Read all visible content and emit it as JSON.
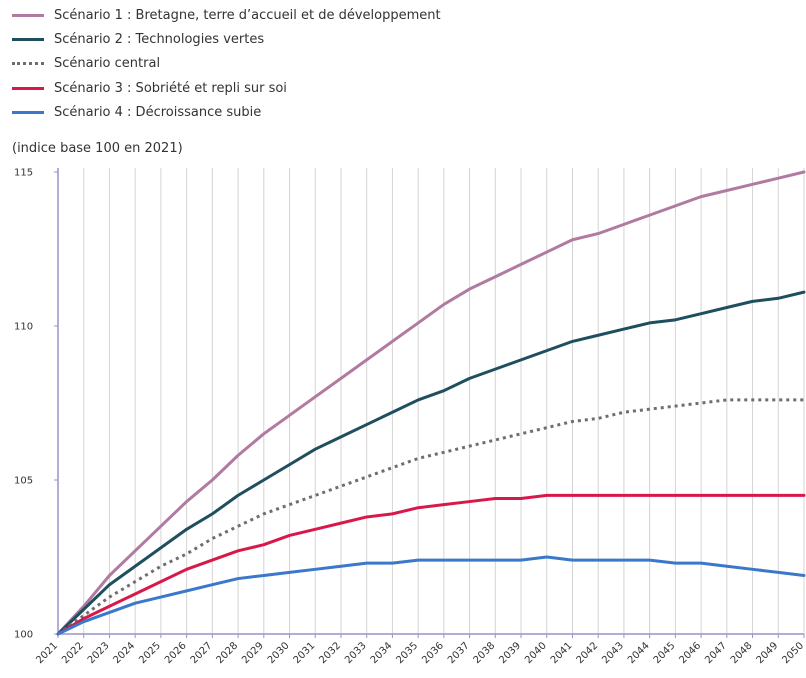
{
  "chart_data": {
    "type": "line",
    "unit_label": "(indice base 100 en 2021)",
    "x": [
      2021,
      2022,
      2023,
      2024,
      2025,
      2026,
      2027,
      2028,
      2029,
      2030,
      2031,
      2032,
      2033,
      2034,
      2035,
      2036,
      2037,
      2038,
      2039,
      2040,
      2041,
      2042,
      2043,
      2044,
      2045,
      2046,
      2047,
      2048,
      2049,
      2050
    ],
    "ylim": [
      100,
      115
    ],
    "yticks": [
      100,
      105,
      110,
      115
    ],
    "grid": "vertical",
    "legend_placement": "top-left",
    "series": [
      {
        "name": "Scénario 1 : Bretagne, terre d’accueil et de développement",
        "color": "#b07aa1",
        "style": "solid",
        "values": [
          100,
          100.9,
          101.9,
          102.7,
          103.5,
          104.3,
          105.0,
          105.8,
          106.5,
          107.1,
          107.7,
          108.3,
          108.9,
          109.5,
          110.1,
          110.7,
          111.2,
          111.6,
          112.0,
          112.4,
          112.8,
          113.0,
          113.3,
          113.6,
          113.9,
          114.2,
          114.4,
          114.6,
          114.8,
          115.0
        ]
      },
      {
        "name": "Scénario 2 : Technologies vertes",
        "color": "#1f4e5f",
        "style": "solid",
        "values": [
          100,
          100.8,
          101.6,
          102.2,
          102.8,
          103.4,
          103.9,
          104.5,
          105.0,
          105.5,
          106.0,
          106.4,
          106.8,
          107.2,
          107.6,
          107.9,
          108.3,
          108.6,
          108.9,
          109.2,
          109.5,
          109.7,
          109.9,
          110.1,
          110.2,
          110.4,
          110.6,
          110.8,
          110.9,
          111.1
        ]
      },
      {
        "name": "Scénario central",
        "color": "#6e6e6e",
        "style": "dotted",
        "values": [
          100,
          100.6,
          101.2,
          101.7,
          102.2,
          102.6,
          103.1,
          103.5,
          103.9,
          104.2,
          104.5,
          104.8,
          105.1,
          105.4,
          105.7,
          105.9,
          106.1,
          106.3,
          106.5,
          106.7,
          106.9,
          107.0,
          107.2,
          107.3,
          107.4,
          107.5,
          107.6,
          107.6,
          107.6,
          107.6
        ]
      },
      {
        "name": "Scénario 3 : Sobriété et repli sur soi",
        "color": "#d9184a",
        "style": "solid",
        "values": [
          100,
          100.5,
          100.9,
          101.3,
          101.7,
          102.1,
          102.4,
          102.7,
          102.9,
          103.2,
          103.4,
          103.6,
          103.8,
          103.9,
          104.1,
          104.2,
          104.3,
          104.4,
          104.4,
          104.5,
          104.5,
          104.5,
          104.5,
          104.5,
          104.5,
          104.5,
          104.5,
          104.5,
          104.5,
          104.5
        ]
      },
      {
        "name": "Scénario 4 : Décroissance subie",
        "color": "#3a78c9",
        "style": "solid",
        "values": [
          100,
          100.4,
          100.7,
          101.0,
          101.2,
          101.4,
          101.6,
          101.8,
          101.9,
          102.0,
          102.1,
          102.2,
          102.3,
          102.3,
          102.4,
          102.4,
          102.4,
          102.4,
          102.4,
          102.5,
          102.4,
          102.4,
          102.4,
          102.4,
          102.3,
          102.3,
          102.2,
          102.1,
          102.0,
          101.9
        ]
      }
    ]
  }
}
